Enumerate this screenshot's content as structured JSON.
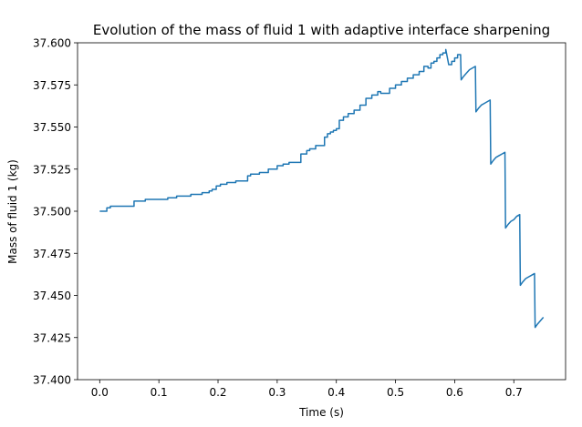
{
  "chart_data": {
    "type": "line",
    "title": "Evolution of the mass of fluid 1 with adaptive interface sharpening",
    "xlabel": "Time (s)",
    "ylabel": "Mass of fluid 1 (kg)",
    "xlim": [
      -0.0375,
      0.7875
    ],
    "ylim": [
      37.4,
      37.6
    ],
    "x_ticks": [
      0.0,
      0.1,
      0.2,
      0.3,
      0.4,
      0.5,
      0.6,
      0.7
    ],
    "x_tick_labels": [
      "0.0",
      "0.1",
      "0.2",
      "0.3",
      "0.4",
      "0.5",
      "0.6",
      "0.7"
    ],
    "y_ticks": [
      37.4,
      37.425,
      37.45,
      37.475,
      37.5,
      37.525,
      37.55,
      37.575,
      37.6
    ],
    "y_tick_labels": [
      "37.400",
      "37.425",
      "37.450",
      "37.475",
      "37.500",
      "37.525",
      "37.550",
      "37.575",
      "37.600"
    ],
    "grid": false,
    "line_color": "#1f77b4",
    "series": [
      {
        "x": [
          0.0,
          0.012,
          0.012,
          0.018,
          0.018,
          0.058,
          0.058,
          0.077,
          0.077,
          0.115,
          0.115,
          0.13,
          0.13,
          0.154,
          0.154,
          0.173,
          0.173,
          0.185,
          0.185,
          0.19,
          0.19,
          0.197,
          0.197,
          0.204,
          0.204,
          0.215,
          0.215,
          0.23,
          0.23,
          0.25,
          0.25,
          0.255,
          0.255,
          0.27,
          0.27,
          0.285,
          0.285,
          0.3,
          0.3,
          0.31,
          0.31,
          0.32,
          0.32,
          0.34,
          0.34,
          0.35,
          0.35,
          0.355,
          0.355,
          0.365,
          0.365,
          0.38,
          0.38,
          0.385,
          0.385,
          0.39,
          0.39,
          0.395,
          0.395,
          0.4,
          0.4,
          0.405,
          0.405,
          0.412,
          0.412,
          0.42,
          0.42,
          0.43,
          0.43,
          0.44,
          0.44,
          0.45,
          0.45,
          0.46,
          0.46,
          0.47,
          0.47,
          0.475,
          0.475,
          0.49,
          0.49,
          0.5,
          0.5,
          0.51,
          0.51,
          0.52,
          0.52,
          0.53,
          0.53,
          0.54,
          0.54,
          0.548,
          0.548,
          0.555,
          0.555,
          0.56,
          0.56,
          0.565,
          0.565,
          0.57,
          0.57,
          0.575,
          0.575,
          0.58,
          0.58,
          0.585,
          0.585,
          0.59,
          0.595,
          0.595,
          0.6,
          0.6,
          0.605,
          0.605,
          0.61,
          0.611,
          0.611,
          0.615,
          0.615,
          0.62,
          0.62,
          0.625,
          0.625,
          0.63,
          0.63,
          0.635,
          0.636,
          0.636,
          0.64,
          0.64,
          0.645,
          0.645,
          0.65,
          0.65,
          0.655,
          0.655,
          0.66,
          0.661,
          0.661,
          0.665,
          0.665,
          0.67,
          0.67,
          0.675,
          0.675,
          0.68,
          0.68,
          0.685,
          0.686,
          0.686,
          0.69,
          0.69,
          0.695,
          0.695,
          0.7,
          0.7,
          0.705,
          0.705,
          0.71,
          0.711,
          0.711,
          0.715,
          0.715,
          0.72,
          0.72,
          0.725,
          0.725,
          0.73,
          0.73,
          0.735,
          0.736,
          0.736,
          0.74,
          0.74,
          0.745,
          0.745,
          0.75
        ],
        "y": [
          37.5,
          37.5,
          37.502,
          37.502,
          37.503,
          37.503,
          37.506,
          37.506,
          37.507,
          37.507,
          37.508,
          37.508,
          37.509,
          37.509,
          37.51,
          37.51,
          37.511,
          37.511,
          37.512,
          37.512,
          37.513,
          37.513,
          37.515,
          37.515,
          37.516,
          37.516,
          37.517,
          37.517,
          37.518,
          37.518,
          37.521,
          37.521,
          37.522,
          37.522,
          37.523,
          37.523,
          37.525,
          37.525,
          37.527,
          37.527,
          37.528,
          37.528,
          37.529,
          37.529,
          37.534,
          37.534,
          37.536,
          37.536,
          37.537,
          37.537,
          37.539,
          37.539,
          37.544,
          37.544,
          37.546,
          37.546,
          37.547,
          37.547,
          37.548,
          37.548,
          37.549,
          37.549,
          37.554,
          37.554,
          37.556,
          37.556,
          37.558,
          37.558,
          37.56,
          37.56,
          37.563,
          37.563,
          37.567,
          37.567,
          37.569,
          37.569,
          37.571,
          37.571,
          37.57,
          37.57,
          37.573,
          37.573,
          37.575,
          37.575,
          37.577,
          37.577,
          37.579,
          37.579,
          37.581,
          37.581,
          37.583,
          37.583,
          37.586,
          37.586,
          37.585,
          37.585,
          37.588,
          37.588,
          37.589,
          37.589,
          37.591,
          37.591,
          37.593,
          37.593,
          37.594,
          37.594,
          37.596,
          37.587,
          37.587,
          37.589,
          37.589,
          37.591,
          37.591,
          37.593,
          37.593,
          37.578,
          37.578,
          37.58,
          37.58,
          37.582,
          37.582,
          37.584,
          37.584,
          37.585,
          37.585,
          37.586,
          37.559,
          37.559,
          37.561,
          37.561,
          37.563,
          37.563,
          37.564,
          37.564,
          37.565,
          37.565,
          37.566,
          37.528,
          37.528,
          37.53,
          37.53,
          37.532,
          37.532,
          37.533,
          37.533,
          37.534,
          37.534,
          37.535,
          37.49,
          37.49,
          37.492,
          37.492,
          37.494,
          37.494,
          37.495,
          37.495,
          37.497,
          37.497,
          37.498,
          37.456,
          37.456,
          37.458,
          37.458,
          37.46,
          37.46,
          37.461,
          37.461,
          37.462,
          37.462,
          37.463,
          37.431,
          37.431,
          37.433,
          37.433,
          37.435,
          37.435,
          37.437
        ]
      }
    ]
  }
}
